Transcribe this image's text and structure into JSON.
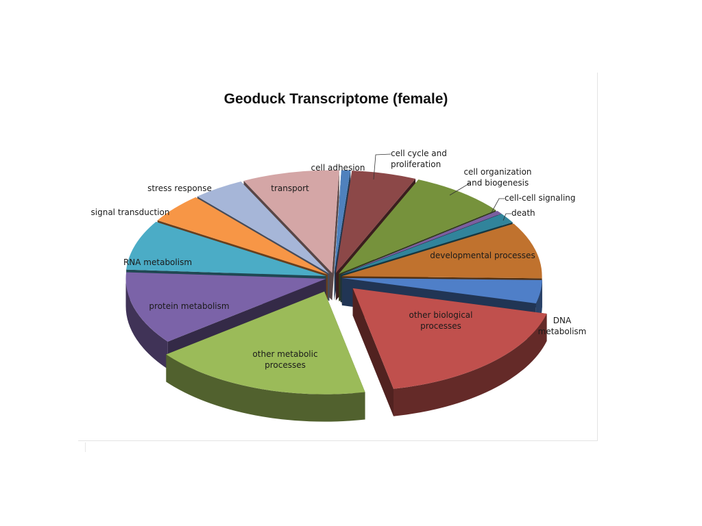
{
  "chart_data": {
    "type": "pie",
    "title": "Geoduck Transcriptome (female)",
    "style": "3D exploded pie",
    "slices": [
      {
        "label": "cell adhesion",
        "value": 0.7,
        "color": "#4f81bd"
      },
      {
        "label": "cell cycle and proliferation",
        "value": 5.0,
        "color": "#8c4848"
      },
      {
        "label": "cell organization and biogenesis",
        "value": 7.5,
        "color": "#76923c"
      },
      {
        "label": "cell-cell signaling",
        "value": 0.5,
        "color": "#7b5fa0"
      },
      {
        "label": "death",
        "value": 1.5,
        "color": "#31849b"
      },
      {
        "label": "developmental processes",
        "value": 8.5,
        "color": "#c0722e"
      },
      {
        "label": "DNA metabolism",
        "value": 3.5,
        "color": "#4f7fc8"
      },
      {
        "label": "other biological processes",
        "value": 17.0,
        "color": "#c0504d"
      },
      {
        "label": "other metabolic processes",
        "value": 17.0,
        "color": "#9bbb59"
      },
      {
        "label": "protein metabolism",
        "value": 11.0,
        "color": "#7b63a8"
      },
      {
        "label": "RNA metabolism",
        "value": 7.5,
        "color": "#4bacc6"
      },
      {
        "label": "signal transduction",
        "value": 4.5,
        "color": "#f79646"
      },
      {
        "label": "stress response",
        "value": 4.0,
        "color": "#a6b6d8"
      },
      {
        "label": "transport",
        "value": 7.5,
        "color": "#d4a6a6"
      }
    ]
  }
}
